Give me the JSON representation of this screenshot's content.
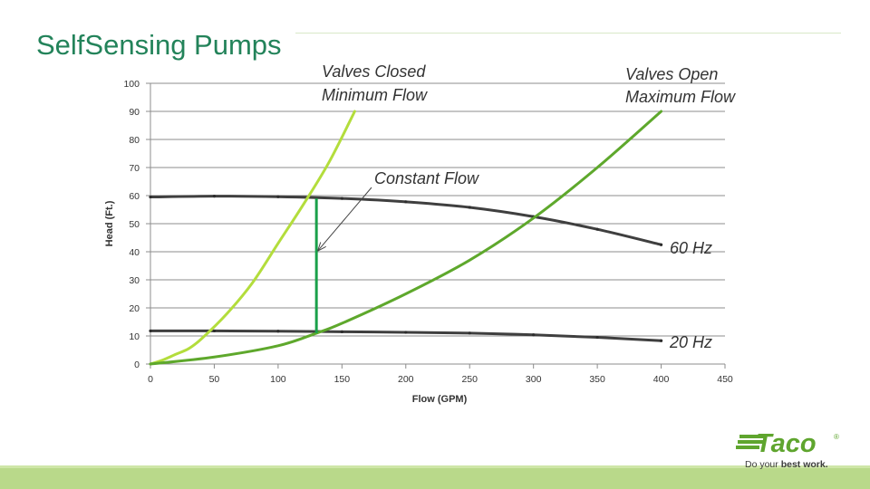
{
  "slide": {
    "title": "SelfSensing Pumps"
  },
  "logo": {
    "wordmark": "Taco",
    "registered": "®",
    "tagline_start": "Do your ",
    "tagline_bold": "best work.",
    "color": "#5fa52e"
  },
  "chart_data": {
    "type": "line",
    "xlabel": "Flow (GPM)",
    "ylabel": "Head (Ft.)",
    "xlim": [
      0,
      450
    ],
    "ylim": [
      0,
      100
    ],
    "xticks": [
      0,
      50,
      100,
      150,
      200,
      250,
      300,
      350,
      400,
      450
    ],
    "yticks": [
      0,
      10,
      20,
      30,
      40,
      50,
      60,
      70,
      80,
      90,
      100
    ],
    "grid": "horizontal",
    "series": [
      {
        "name": "60 Hz",
        "color": "#3f3f3f",
        "markers": true,
        "points": [
          [
            0,
            59.5
          ],
          [
            50,
            59.8
          ],
          [
            100,
            59.6
          ],
          [
            150,
            59.0
          ],
          [
            200,
            57.8
          ],
          [
            250,
            55.8
          ],
          [
            300,
            52.5
          ],
          [
            350,
            48.0
          ],
          [
            400,
            42.5
          ]
        ]
      },
      {
        "name": "20 Hz",
        "color": "#3f3f3f",
        "markers": true,
        "points": [
          [
            0,
            11.8
          ],
          [
            50,
            11.8
          ],
          [
            100,
            11.7
          ],
          [
            150,
            11.5
          ],
          [
            200,
            11.3
          ],
          [
            250,
            11.0
          ],
          [
            300,
            10.4
          ],
          [
            350,
            9.5
          ],
          [
            400,
            8.3
          ]
        ]
      },
      {
        "name": "Valves Closed Minimum Flow",
        "color": "#b3dd3c",
        "markers": false,
        "points": [
          [
            0,
            0
          ],
          [
            10,
            1.5
          ],
          [
            20,
            3.5
          ],
          [
            30,
            5.5
          ],
          [
            40,
            9
          ],
          [
            60,
            18
          ],
          [
            80,
            29
          ],
          [
            100,
            43
          ],
          [
            120,
            57
          ],
          [
            140,
            72
          ],
          [
            160,
            90
          ]
        ]
      },
      {
        "name": "Valves Open Maximum Flow",
        "color": "#5ea82c",
        "markers": false,
        "points": [
          [
            0,
            0
          ],
          [
            50,
            2.5
          ],
          [
            100,
            6.5
          ],
          [
            130,
            11
          ],
          [
            150,
            14.5
          ],
          [
            200,
            25
          ],
          [
            250,
            37
          ],
          [
            300,
            52
          ],
          [
            350,
            70
          ],
          [
            400,
            90
          ]
        ]
      }
    ],
    "constant_flow": {
      "x": 130,
      "y_range": [
        11,
        59
      ],
      "color": "#1aa04a"
    },
    "annotations": [
      {
        "id": "valves_closed_1",
        "text": "Valves Closed"
      },
      {
        "id": "valves_closed_2",
        "text": "Minimum Flow"
      },
      {
        "id": "valves_open_1",
        "text": "Valves Open"
      },
      {
        "id": "valves_open_2",
        "text": "Maximum Flow"
      },
      {
        "id": "constant_flow",
        "text": "Constant Flow"
      },
      {
        "id": "hz60",
        "text": "60 Hz"
      },
      {
        "id": "hz20",
        "text": "20 Hz"
      }
    ]
  }
}
